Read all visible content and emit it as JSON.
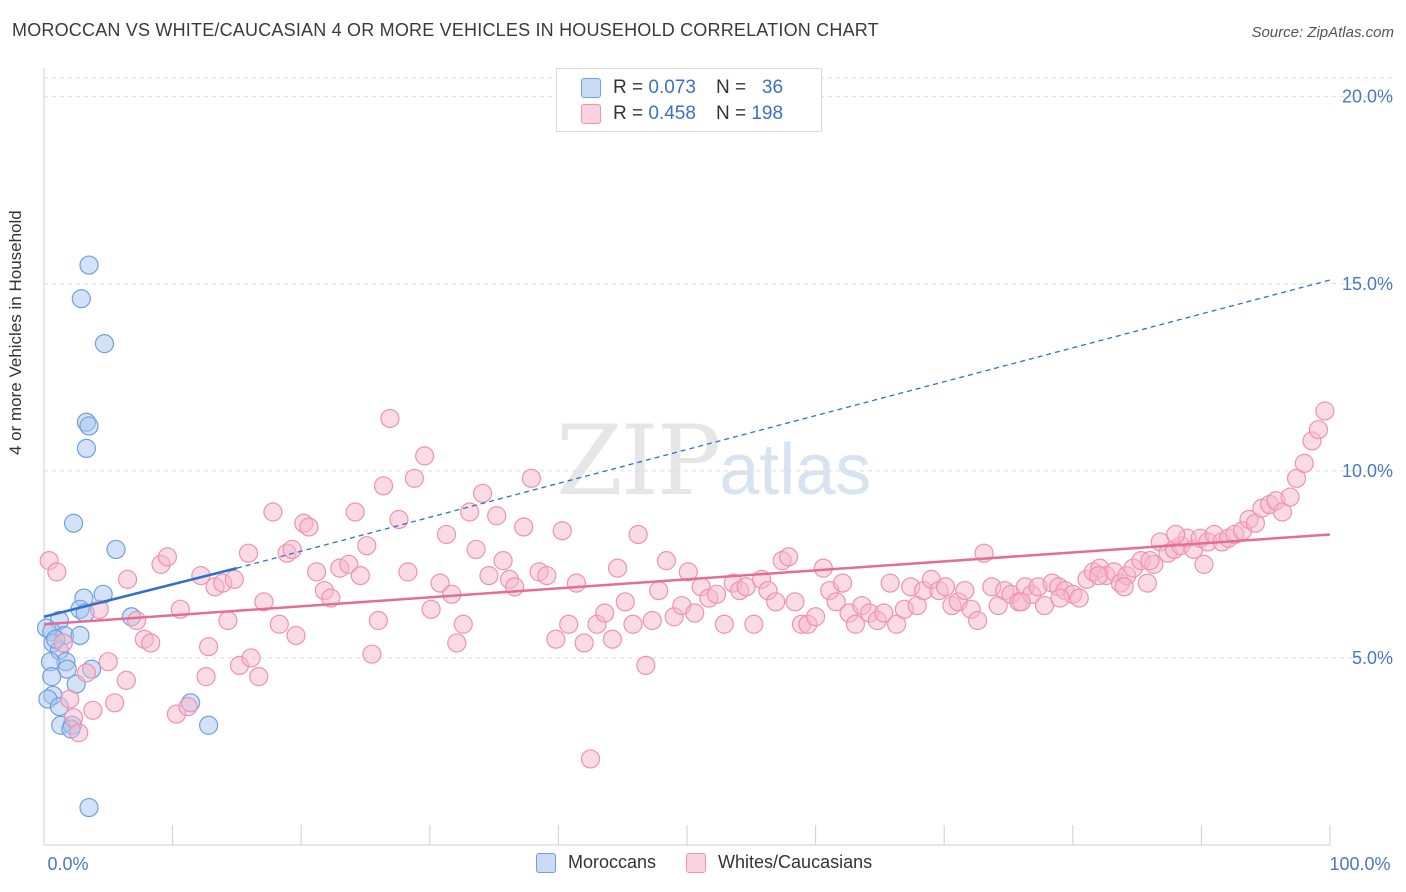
{
  "header": {
    "title": "MOROCCAN VS WHITE/CAUCASIAN 4 OR MORE VEHICLES IN HOUSEHOLD CORRELATION CHART",
    "source": "Source: ZipAtlas.com"
  },
  "watermark": {
    "zip": "ZIP",
    "atlas": "atlas"
  },
  "legend_top": {
    "rows": [
      {
        "r_label": "R =",
        "r_value": "0.073",
        "n_label": "N =",
        "n_value": "36",
        "color": "#a8c6ef"
      },
      {
        "r_label": "R =",
        "r_value": "0.458",
        "n_label": "N =",
        "n_value": "198",
        "color": "#f6b8cb"
      }
    ]
  },
  "legend_bottom": {
    "items": [
      {
        "label": "Moroccans",
        "color": "#a8c6ef"
      },
      {
        "label": "Whites/Caucasians",
        "color": "#f6b8cb"
      }
    ]
  },
  "colors": {
    "moroccan_fill": "#a8c6ef",
    "moroccan_stroke": "#6f9fe0",
    "moroccan_line": "#2f6fd0",
    "white_fill": "#f6b8cb",
    "white_stroke": "#ee92ae",
    "white_line": "#e36d95",
    "grid": "#dcdcdc",
    "tick_text": "#4a78c6"
  },
  "chart_data": {
    "type": "scatter",
    "title": "MOROCCAN VS WHITE/CAUCASIAN 4 OR MORE VEHICLES IN HOUSEHOLD CORRELATION CHART",
    "xlabel": "",
    "ylabel": "4 or more Vehicles in Household",
    "xlim": [
      0,
      100
    ],
    "ylim": [
      0,
      20.5
    ],
    "x_tick_labels": [
      {
        "value": 0,
        "label": "0.0%"
      },
      {
        "value": 100,
        "label": "100.0%"
      }
    ],
    "y_tick_labels": [
      {
        "value": 5,
        "label": "5.0%"
      },
      {
        "value": 10,
        "label": "10.0%"
      },
      {
        "value": 15,
        "label": "15.0%"
      },
      {
        "value": 20,
        "label": "20.0%"
      }
    ],
    "grid": "horizontal dashed",
    "legend": "bottom-center",
    "series": [
      {
        "name": "Moroccans",
        "R": 0.073,
        "N": 36,
        "trend": {
          "x0": 0,
          "y0": 6.1,
          "x1": 15,
          "y1": 7.4,
          "dashed_to_x": 100,
          "dashed_to_y": 15.1
        },
        "points": [
          [
            3.5,
            15.5
          ],
          [
            2.9,
            14.6
          ],
          [
            4.7,
            13.4
          ],
          [
            3.3,
            11.3
          ],
          [
            3.5,
            11.2
          ],
          [
            3.3,
            10.6
          ],
          [
            2.3,
            8.6
          ],
          [
            5.6,
            7.9
          ],
          [
            4.6,
            6.7
          ],
          [
            3.1,
            6.6
          ],
          [
            2.8,
            6.3
          ],
          [
            3.2,
            6.2
          ],
          [
            6.8,
            6.1
          ],
          [
            1.2,
            6.0
          ],
          [
            0.2,
            5.8
          ],
          [
            0.6,
            5.7
          ],
          [
            1.6,
            5.6
          ],
          [
            2.8,
            5.6
          ],
          [
            0.7,
            5.4
          ],
          [
            1.2,
            5.2
          ],
          [
            1.7,
            4.9
          ],
          [
            0.5,
            4.9
          ],
          [
            1.8,
            4.7
          ],
          [
            3.7,
            4.7
          ],
          [
            0.6,
            4.5
          ],
          [
            2.5,
            4.3
          ],
          [
            0.7,
            4.0
          ],
          [
            0.3,
            3.9
          ],
          [
            1.2,
            3.7
          ],
          [
            11.4,
            3.8
          ],
          [
            1.3,
            3.2
          ],
          [
            2.2,
            3.2
          ],
          [
            2.1,
            3.1
          ],
          [
            12.8,
            3.2
          ],
          [
            3.5,
            1.0
          ],
          [
            0.9,
            5.5
          ]
        ]
      },
      {
        "name": "Whites/Caucasians",
        "R": 0.458,
        "N": 198,
        "trend": {
          "x0": 0,
          "y0": 5.9,
          "x1": 100,
          "y1": 8.3
        },
        "points": [
          [
            0.4,
            7.6
          ],
          [
            1.0,
            7.3
          ],
          [
            1.5,
            5.4
          ],
          [
            2.0,
            3.9
          ],
          [
            2.3,
            3.4
          ],
          [
            2.7,
            3.0
          ],
          [
            3.3,
            4.6
          ],
          [
            3.8,
            3.6
          ],
          [
            4.3,
            6.3
          ],
          [
            5.0,
            4.9
          ],
          [
            5.5,
            3.8
          ],
          [
            6.4,
            4.4
          ],
          [
            6.5,
            7.1
          ],
          [
            7.2,
            6.0
          ],
          [
            7.8,
            5.5
          ],
          [
            8.3,
            5.4
          ],
          [
            9.1,
            7.5
          ],
          [
            9.6,
            7.7
          ],
          [
            10.3,
            3.5
          ],
          [
            10.6,
            6.3
          ],
          [
            11.2,
            3.7
          ],
          [
            12.2,
            7.2
          ],
          [
            12.6,
            4.5
          ],
          [
            12.8,
            5.3
          ],
          [
            13.3,
            6.9
          ],
          [
            13.9,
            7.0
          ],
          [
            14.3,
            6.0
          ],
          [
            14.8,
            7.1
          ],
          [
            15.2,
            4.8
          ],
          [
            15.9,
            7.8
          ],
          [
            16.1,
            5.0
          ],
          [
            16.7,
            4.5
          ],
          [
            17.1,
            6.5
          ],
          [
            17.8,
            8.9
          ],
          [
            18.3,
            5.9
          ],
          [
            18.9,
            7.8
          ],
          [
            19.3,
            7.9
          ],
          [
            19.6,
            5.6
          ],
          [
            20.2,
            8.6
          ],
          [
            20.6,
            8.5
          ],
          [
            21.2,
            7.3
          ],
          [
            21.8,
            6.8
          ],
          [
            22.3,
            6.6
          ],
          [
            23.0,
            7.4
          ],
          [
            23.7,
            7.5
          ],
          [
            24.2,
            8.9
          ],
          [
            24.6,
            7.2
          ],
          [
            25.1,
            8.0
          ],
          [
            25.5,
            5.1
          ],
          [
            26.0,
            6.0
          ],
          [
            26.4,
            9.6
          ],
          [
            26.9,
            11.4
          ],
          [
            27.6,
            8.7
          ],
          [
            28.3,
            7.3
          ],
          [
            28.8,
            9.8
          ],
          [
            29.6,
            10.4
          ],
          [
            30.1,
            6.3
          ],
          [
            30.8,
            7.0
          ],
          [
            31.3,
            8.3
          ],
          [
            31.7,
            6.7
          ],
          [
            32.1,
            5.4
          ],
          [
            32.6,
            5.9
          ],
          [
            33.1,
            8.9
          ],
          [
            33.6,
            7.9
          ],
          [
            34.1,
            9.4
          ],
          [
            34.6,
            7.2
          ],
          [
            35.2,
            8.8
          ],
          [
            35.7,
            7.6
          ],
          [
            36.2,
            7.1
          ],
          [
            36.6,
            6.9
          ],
          [
            37.3,
            8.5
          ],
          [
            37.9,
            9.8
          ],
          [
            38.5,
            7.3
          ],
          [
            39.1,
            7.2
          ],
          [
            39.8,
            5.5
          ],
          [
            40.3,
            8.4
          ],
          [
            40.8,
            5.9
          ],
          [
            41.4,
            7.0
          ],
          [
            42.0,
            5.4
          ],
          [
            42.5,
            2.3
          ],
          [
            43.0,
            5.9
          ],
          [
            43.6,
            6.2
          ],
          [
            44.2,
            5.5
          ],
          [
            44.6,
            7.4
          ],
          [
            45.2,
            6.5
          ],
          [
            45.8,
            5.9
          ],
          [
            46.2,
            8.3
          ],
          [
            46.8,
            4.8
          ],
          [
            47.3,
            6.0
          ],
          [
            47.8,
            6.8
          ],
          [
            48.4,
            7.6
          ],
          [
            49.0,
            6.1
          ],
          [
            49.6,
            6.4
          ],
          [
            50.1,
            7.3
          ],
          [
            50.6,
            6.2
          ],
          [
            51.1,
            6.9
          ],
          [
            51.7,
            6.6
          ],
          [
            52.3,
            6.7
          ],
          [
            52.9,
            5.9
          ],
          [
            53.6,
            7.0
          ],
          [
            54.1,
            6.8
          ],
          [
            54.6,
            6.9
          ],
          [
            55.2,
            5.9
          ],
          [
            55.8,
            7.1
          ],
          [
            56.3,
            6.8
          ],
          [
            56.9,
            6.5
          ],
          [
            57.4,
            7.6
          ],
          [
            57.9,
            7.7
          ],
          [
            58.4,
            6.5
          ],
          [
            58.9,
            5.9
          ],
          [
            59.4,
            5.9
          ],
          [
            60.0,
            6.1
          ],
          [
            60.6,
            7.4
          ],
          [
            61.1,
            6.8
          ],
          [
            61.6,
            6.5
          ],
          [
            62.1,
            7.0
          ],
          [
            62.6,
            6.2
          ],
          [
            63.1,
            5.9
          ],
          [
            63.6,
            6.4
          ],
          [
            64.2,
            6.2
          ],
          [
            64.8,
            6.0
          ],
          [
            65.3,
            6.2
          ],
          [
            65.8,
            7.0
          ],
          [
            66.3,
            5.9
          ],
          [
            66.9,
            6.3
          ],
          [
            67.4,
            6.9
          ],
          [
            67.9,
            6.4
          ],
          [
            68.4,
            6.8
          ],
          [
            69.0,
            7.1
          ],
          [
            69.6,
            6.8
          ],
          [
            70.1,
            6.9
          ],
          [
            70.6,
            6.4
          ],
          [
            71.1,
            6.5
          ],
          [
            71.6,
            6.8
          ],
          [
            72.1,
            6.3
          ],
          [
            72.6,
            6.0
          ],
          [
            73.1,
            7.8
          ],
          [
            73.7,
            6.9
          ],
          [
            74.2,
            6.4
          ],
          [
            74.7,
            6.8
          ],
          [
            75.2,
            6.7
          ],
          [
            75.8,
            6.5
          ],
          [
            76.3,
            6.9
          ],
          [
            76.8,
            6.7
          ],
          [
            77.3,
            6.9
          ],
          [
            77.8,
            6.4
          ],
          [
            78.4,
            7.0
          ],
          [
            78.9,
            6.9
          ],
          [
            79.4,
            6.8
          ],
          [
            80.0,
            6.7
          ],
          [
            80.5,
            6.6
          ],
          [
            81.1,
            7.1
          ],
          [
            81.6,
            7.3
          ],
          [
            82.1,
            7.4
          ],
          [
            82.6,
            7.2
          ],
          [
            83.2,
            7.3
          ],
          [
            83.7,
            7.0
          ],
          [
            84.2,
            7.2
          ],
          [
            84.7,
            7.4
          ],
          [
            85.3,
            7.6
          ],
          [
            85.8,
            7.0
          ],
          [
            86.3,
            7.5
          ],
          [
            86.8,
            8.1
          ],
          [
            87.4,
            7.8
          ],
          [
            87.9,
            7.9
          ],
          [
            88.4,
            8.0
          ],
          [
            88.9,
            8.2
          ],
          [
            89.4,
            7.9
          ],
          [
            89.9,
            8.2
          ],
          [
            90.5,
            8.1
          ],
          [
            91.0,
            8.3
          ],
          [
            91.6,
            8.1
          ],
          [
            92.1,
            8.2
          ],
          [
            92.6,
            8.3
          ],
          [
            93.2,
            8.4
          ],
          [
            93.7,
            8.7
          ],
          [
            94.2,
            8.6
          ],
          [
            94.7,
            9.0
          ],
          [
            95.3,
            9.1
          ],
          [
            95.8,
            9.2
          ],
          [
            96.3,
            8.9
          ],
          [
            96.9,
            9.3
          ],
          [
            97.4,
            9.8
          ],
          [
            98.0,
            10.2
          ],
          [
            98.6,
            10.8
          ],
          [
            99.1,
            11.1
          ],
          [
            99.6,
            11.6
          ],
          [
            90.2,
            7.5
          ],
          [
            88.0,
            8.3
          ],
          [
            86.0,
            7.6
          ],
          [
            84.0,
            6.9
          ],
          [
            82.0,
            7.2
          ],
          [
            79.0,
            6.6
          ],
          [
            76.0,
            6.5
          ]
        ]
      }
    ]
  }
}
